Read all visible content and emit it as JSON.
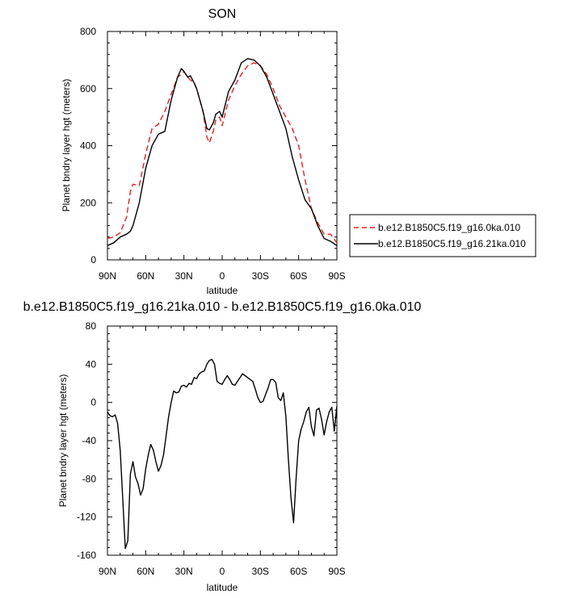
{
  "chart_data": [
    {
      "type": "line",
      "title": "SON",
      "xlabel": "latitude",
      "ylabel": "Planet bndry layer hgt (meters)",
      "xlim": [
        90,
        -90
      ],
      "ylim": [
        0,
        800
      ],
      "x_tick_values": [
        90,
        60,
        30,
        0,
        -30,
        -60,
        -90
      ],
      "x_tick_labels": [
        "90N",
        "60N",
        "30N",
        "0",
        "30S",
        "60S",
        "90S"
      ],
      "y_tick_values": [
        0,
        200,
        400,
        600,
        800
      ],
      "y_tick_labels": [
        "0",
        "200",
        "400",
        "600",
        "800"
      ],
      "grid": false,
      "legend_position": "right",
      "x": [
        90,
        85,
        80,
        75,
        72,
        70,
        65,
        60,
        55,
        50,
        45,
        40,
        35,
        32,
        30,
        27,
        25,
        22,
        20,
        15,
        12,
        10,
        7,
        5,
        2,
        0,
        -5,
        -10,
        -15,
        -20,
        -25,
        -30,
        -35,
        -40,
        -45,
        -50,
        -55,
        -60,
        -65,
        -70,
        -75,
        -80,
        -85,
        -90
      ],
      "series": [
        {
          "name": "b.e12.B1850C5.f19_g16.0ka.010",
          "color": "#e02020",
          "dash": true,
          "values": [
            75,
            80,
            95,
            150,
            240,
            265,
            260,
            370,
            460,
            475,
            520,
            580,
            640,
            650,
            660,
            640,
            630,
            620,
            600,
            520,
            430,
            410,
            450,
            490,
            500,
            470,
            560,
            610,
            650,
            680,
            690,
            680,
            650,
            600,
            540,
            500,
            460,
            400,
            280,
            180,
            130,
            90,
            90,
            60
          ]
        },
        {
          "name": "b.e12.B1850C5.f19_g16.21ka.010",
          "color": "#000000",
          "dash": false,
          "values": [
            50,
            60,
            80,
            90,
            100,
            120,
            200,
            320,
            400,
            440,
            450,
            560,
            640,
            670,
            660,
            640,
            645,
            620,
            600,
            520,
            460,
            455,
            480,
            510,
            520,
            500,
            590,
            630,
            690,
            705,
            700,
            680,
            640,
            580,
            520,
            460,
            360,
            280,
            210,
            180,
            120,
            75,
            65,
            50
          ]
        }
      ]
    },
    {
      "type": "line",
      "title": "b.e12.B1850C5.f19_g16.21ka.010 - b.e12.B1850C5.f19_g16.0ka.010",
      "xlabel": "latitude",
      "ylabel": "Planet bndry layer hgt (meters)",
      "xlim": [
        90,
        -90
      ],
      "ylim": [
        -160,
        80
      ],
      "x_tick_values": [
        90,
        60,
        30,
        0,
        -30,
        -60,
        -90
      ],
      "x_tick_labels": [
        "90N",
        "60N",
        "30N",
        "0",
        "30S",
        "60S",
        "90S"
      ],
      "y_tick_values": [
        -160,
        -120,
        -80,
        -40,
        0,
        40,
        80
      ],
      "y_tick_labels": [
        "-160",
        "-120",
        "-80",
        "-40",
        "0",
        "40",
        "80"
      ],
      "grid": false,
      "x": [
        90,
        88,
        86,
        84,
        82,
        80,
        78,
        76,
        74,
        72,
        70,
        68,
        66,
        64,
        62,
        60,
        58,
        56,
        54,
        52,
        50,
        48,
        46,
        44,
        42,
        40,
        38,
        36,
        34,
        32,
        30,
        28,
        26,
        24,
        22,
        20,
        18,
        16,
        14,
        12,
        10,
        8,
        6,
        4,
        2,
        0,
        -2,
        -4,
        -6,
        -8,
        -10,
        -12,
        -14,
        -16,
        -18,
        -20,
        -22,
        -24,
        -26,
        -28,
        -30,
        -32,
        -34,
        -36,
        -38,
        -40,
        -42,
        -44,
        -46,
        -48,
        -50,
        -52,
        -54,
        -56,
        -58,
        -60,
        -62,
        -64,
        -66,
        -68,
        -70,
        -72,
        -74,
        -76,
        -78,
        -80,
        -82,
        -84,
        -86,
        -88,
        -90
      ],
      "series": [
        {
          "name": "",
          "color": "#000000",
          "dash": false,
          "values": [
            -10,
            -14,
            -15,
            -13,
            -22,
            -50,
            -100,
            -153,
            -145,
            -75,
            -62,
            -78,
            -85,
            -97,
            -90,
            -70,
            -55,
            -44,
            -50,
            -62,
            -72,
            -66,
            -55,
            -35,
            -15,
            0,
            12,
            10,
            11,
            17,
            18,
            16,
            20,
            19,
            26,
            25,
            30,
            32,
            33,
            40,
            44,
            45,
            40,
            22,
            20,
            19,
            24,
            28,
            24,
            19,
            18,
            22,
            26,
            30,
            28,
            26,
            24,
            22,
            14,
            5,
            0,
            1,
            8,
            15,
            24,
            24,
            21,
            5,
            2,
            10,
            -15,
            -60,
            -100,
            -126,
            -80,
            -40,
            -28,
            -20,
            -10,
            -5,
            -25,
            -35,
            -8,
            -6,
            -18,
            -34,
            -20,
            -10,
            -5,
            -30,
            -4
          ]
        }
      ]
    }
  ]
}
